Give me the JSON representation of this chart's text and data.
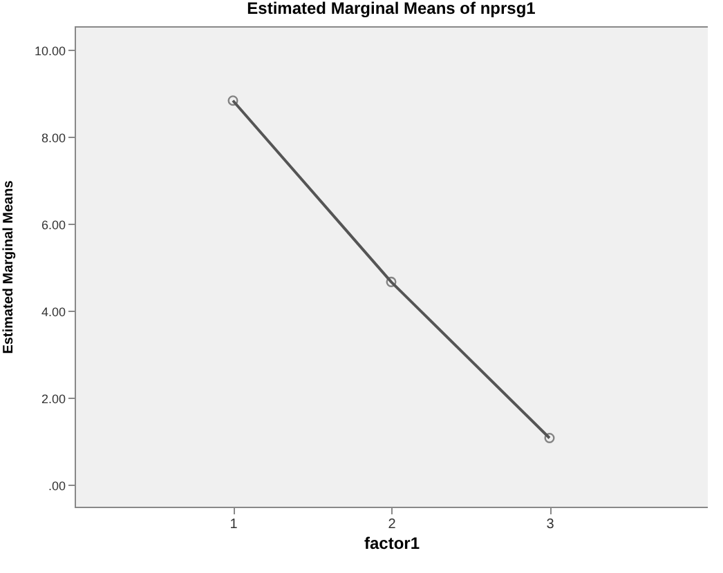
{
  "chart_data": {
    "type": "line",
    "title": "Estimated Marginal Means of nprsg1",
    "xlabel": "factor1",
    "ylabel": "Estimated Marginal Means",
    "categories": [
      "1",
      "2",
      "3"
    ],
    "series": [
      {
        "color": "#555555",
        "values": [
          8.84,
          4.67,
          1.08
        ]
      }
    ],
    "ylim": [
      -0.5,
      10.55
    ],
    "yticks": [
      {
        "value": 0,
        "label": ".00"
      },
      {
        "value": 2,
        "label": "2.00"
      },
      {
        "value": 4,
        "label": "4.00"
      },
      {
        "value": 6,
        "label": "6.00"
      },
      {
        "value": 8,
        "label": "8.00"
      },
      {
        "value": 10,
        "label": "10.00"
      }
    ],
    "grid": false,
    "marker": "circle",
    "line_style": "solid",
    "legend": false
  }
}
